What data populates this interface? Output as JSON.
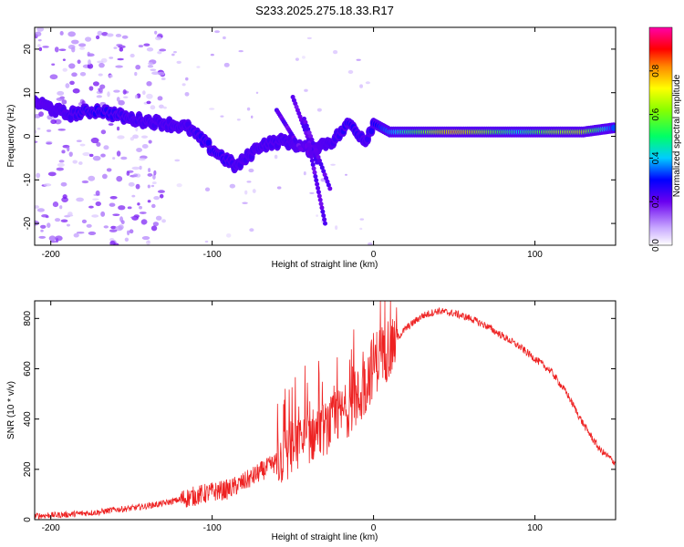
{
  "title": "S233.2025.275.18.33.R17",
  "colors": {
    "snr_line": "#ee2222",
    "colormap": [
      "#e6ddff",
      "#b07cff",
      "#6a00f0",
      "#0000ff",
      "#00ccff",
      "#00ff55",
      "#ffff00",
      "#ff8800",
      "#ff0000",
      "#ff00aa"
    ]
  },
  "chart_data": [
    {
      "type": "heatmap",
      "name": "spectrogram",
      "xlabel": "Height of straight line (km)",
      "ylabel": "Frequency (Hz)",
      "xlim": [
        -210,
        150
      ],
      "ylim": [
        -25,
        25
      ],
      "xticks": [
        -200,
        -100,
        0,
        100
      ],
      "yticks": [
        -20,
        -10,
        0,
        10,
        20
      ],
      "colorbar": {
        "label": "Normalized spectral amplitude",
        "range": [
          0,
          1
        ],
        "ticks": [
          0.0,
          0.2,
          0.4,
          0.6,
          0.8
        ]
      },
      "ridge": [
        {
          "x": -210,
          "y": 8,
          "amp": 0.25
        },
        {
          "x": -190,
          "y": 5,
          "amp": 0.3
        },
        {
          "x": -170,
          "y": 6,
          "amp": 0.35
        },
        {
          "x": -150,
          "y": 4,
          "amp": 0.3
        },
        {
          "x": -130,
          "y": 3,
          "amp": 0.3
        },
        {
          "x": -115,
          "y": 2,
          "amp": 0.3
        },
        {
          "x": -100,
          "y": -3,
          "amp": 0.35
        },
        {
          "x": -85,
          "y": -7,
          "amp": 0.3
        },
        {
          "x": -70,
          "y": -2,
          "amp": 0.3
        },
        {
          "x": -55,
          "y": -1,
          "amp": 0.3
        },
        {
          "x": -40,
          "y": -3,
          "amp": 0.25
        },
        {
          "x": -25,
          "y": -1,
          "amp": 0.3
        },
        {
          "x": -15,
          "y": 3,
          "amp": 0.35
        },
        {
          "x": -5,
          "y": -1,
          "amp": 0.3
        },
        {
          "x": 0,
          "y": 3,
          "amp": 0.35
        },
        {
          "x": 10,
          "y": 1,
          "amp": 0.45
        },
        {
          "x": 30,
          "y": 1,
          "amp": 0.65
        },
        {
          "x": 50,
          "y": 1,
          "amp": 0.85
        },
        {
          "x": 70,
          "y": 1,
          "amp": 0.7
        },
        {
          "x": 90,
          "y": 1,
          "amp": 0.5
        },
        {
          "x": 110,
          "y": 1,
          "amp": 0.7
        },
        {
          "x": 130,
          "y": 1,
          "amp": 0.75
        },
        {
          "x": 150,
          "y": 2,
          "amp": 0.4
        }
      ]
    },
    {
      "type": "line",
      "name": "snr",
      "xlabel": "Height of straight line (km)",
      "ylabel": "SNR (10 * v/v)",
      "xlim": [
        -210,
        150
      ],
      "ylim": [
        0,
        870
      ],
      "xticks": [
        -200,
        -100,
        0,
        100
      ],
      "yticks": [
        0,
        200,
        400,
        600,
        800
      ],
      "series": [
        {
          "name": "SNR",
          "x": [
            -210,
            -190,
            -170,
            -160,
            -150,
            -140,
            -130,
            -120,
            -110,
            -100,
            -90,
            -80,
            -70,
            -60,
            -50,
            -40,
            -30,
            -25,
            -20,
            -15,
            -10,
            -5,
            0,
            10,
            20,
            30,
            40,
            50,
            60,
            70,
            80,
            90,
            100,
            110,
            120,
            130,
            140,
            150
          ],
          "values": [
            15,
            20,
            30,
            40,
            45,
            55,
            65,
            80,
            95,
            110,
            120,
            150,
            190,
            230,
            280,
            330,
            360,
            390,
            420,
            440,
            470,
            540,
            620,
            690,
            760,
            810,
            830,
            820,
            800,
            770,
            730,
            690,
            640,
            590,
            500,
            380,
            280,
            225
          ]
        }
      ]
    }
  ]
}
